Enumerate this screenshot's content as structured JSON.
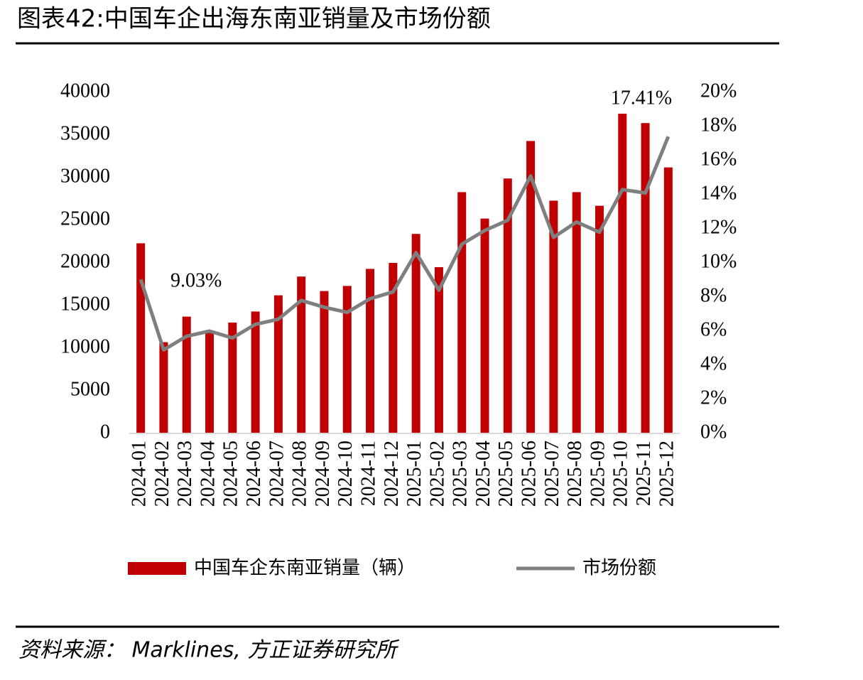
{
  "header": {
    "title": "图表42:中国车企出海东南亚销量及市场份额"
  },
  "chart_data": {
    "type": "bar-line",
    "categories": [
      "2024-01",
      "2024-02",
      "2024-03",
      "2024-04",
      "2024-05",
      "2024-06",
      "2024-07",
      "2024-08",
      "2024-09",
      "2024-10",
      "2024-11",
      "2024-12",
      "2025-01",
      "2025-02",
      "2025-03",
      "2025-04",
      "2025-05",
      "2025-06",
      "2025-07",
      "2025-08",
      "2025-09",
      "2025-10",
      "2025-11",
      "2025-12"
    ],
    "series": [
      {
        "name": "中国车企东南亚销量（辆）",
        "type": "bar",
        "color": "#c00000",
        "values": [
          22300,
          10700,
          13700,
          11900,
          13000,
          14300,
          16200,
          18400,
          16700,
          17300,
          19300,
          20000,
          23400,
          19500,
          28300,
          25200,
          29900,
          34300,
          27300,
          28300,
          26700,
          37500,
          36400,
          31200
        ]
      },
      {
        "name": "市场份额",
        "type": "line",
        "axis": "y2",
        "color": "#7f7f7f",
        "values": [
          9.03,
          4.9,
          5.7,
          6.0,
          5.6,
          6.4,
          6.7,
          7.8,
          7.4,
          7.1,
          7.9,
          8.3,
          10.6,
          8.4,
          11.1,
          11.9,
          12.5,
          15.1,
          11.5,
          12.4,
          11.8,
          14.3,
          14.1,
          17.41
        ],
        "value_labels": [
          "9.03%",
          null,
          null,
          null,
          null,
          null,
          null,
          null,
          null,
          null,
          null,
          null,
          null,
          null,
          null,
          null,
          null,
          null,
          null,
          null,
          null,
          null,
          null,
          "17.41%"
        ]
      }
    ],
    "ylim": [
      0,
      40000
    ],
    "yticks": [
      0,
      5000,
      10000,
      15000,
      20000,
      25000,
      30000,
      35000,
      40000
    ],
    "y2lim": [
      0,
      20
    ],
    "y2ticks": [
      {
        "value": 0,
        "label": "0%"
      },
      {
        "value": 2,
        "label": "2%"
      },
      {
        "value": 4,
        "label": "4%"
      },
      {
        "value": 6,
        "label": "6%"
      },
      {
        "value": 8,
        "label": "8%"
      },
      {
        "value": 10,
        "label": "10%"
      },
      {
        "value": 12,
        "label": "12%"
      },
      {
        "value": 14,
        "label": "14%"
      },
      {
        "value": 16,
        "label": "16%"
      },
      {
        "value": 18,
        "label": "18%"
      },
      {
        "value": 20,
        "label": "20%"
      }
    ],
    "grid": false,
    "legend": "bottom"
  },
  "footer": {
    "source": "资料来源： Marklines, 方正证券研究所"
  }
}
